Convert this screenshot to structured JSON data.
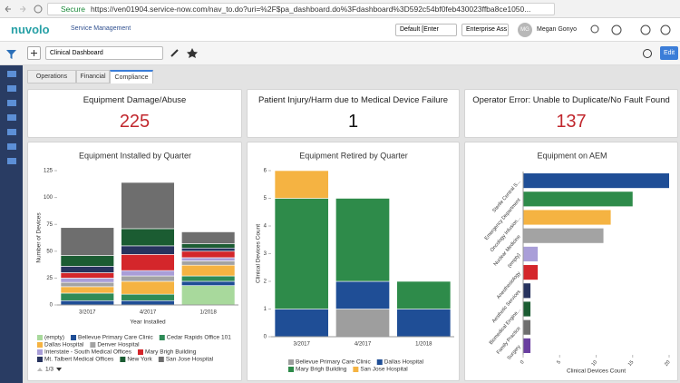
{
  "browser": {
    "secure_label": "Secure",
    "url": "https://ven01904.service-now.com/nav_to.do?uri=%2F$pa_dashboard.do%3Fdashboard%3D592c54bf0feb430023ffba8ce1050..."
  },
  "header": {
    "logo": "nuvolo",
    "app_title": "Service Management",
    "domain_select": "Default [Enter",
    "scope_select": "Enterprise Ass",
    "user_initials": "MG",
    "user_name": "Megan Gonyo"
  },
  "toolbar": {
    "dashboard_select": "Clinical Dashboard",
    "edit_button": "Edit"
  },
  "tabs": [
    "Operations",
    "Financial",
    "Compliance"
  ],
  "kpis": [
    {
      "title": "Equipment Damage/Abuse",
      "value": 225,
      "color": "#c1272d"
    },
    {
      "title": "Patient Injury/Harm due to Medical Device Failure",
      "value": 1,
      "color": "#111111"
    },
    {
      "title": "Operator Error: Unable to Duplicate/No Fault Found",
      "value": 137,
      "color": "#c1272d"
    }
  ],
  "chart_data": [
    {
      "type": "bar",
      "stacked": true,
      "title": "Equipment Installed by Quarter",
      "y_label": "Number of Devices",
      "x_label": "Year Installed",
      "categories": [
        "3/2017",
        "4/2017",
        "1/2018"
      ],
      "ylim": [
        0,
        125
      ],
      "yticks": [
        0,
        25,
        50,
        75,
        100,
        125
      ],
      "series": [
        {
          "name": "(empty)",
          "color": "#a8d99c",
          "values": [
            0,
            0,
            18
          ]
        },
        {
          "name": "Bellevue Primary Care Clinic",
          "color": "#1f4e96",
          "values": [
            4,
            4,
            4
          ]
        },
        {
          "name": "Cedar Rapids Office 101",
          "color": "#2e8b57",
          "values": [
            7,
            6,
            5
          ]
        },
        {
          "name": "Dallas Hospital",
          "color": "#f5b342",
          "values": [
            6,
            12,
            10
          ]
        },
        {
          "name": "Denver Hospital",
          "color": "#a3a3a3",
          "values": [
            4,
            5,
            4
          ]
        },
        {
          "name": "Interstate - South Medical Offices",
          "color": "#a99ed8",
          "values": [
            4,
            5,
            3
          ]
        },
        {
          "name": "Mary Brigh Building",
          "color": "#d4262b",
          "values": [
            5,
            15,
            6
          ]
        },
        {
          "name": "Mt. Talbert Medical Offices",
          "color": "#27335e",
          "values": [
            6,
            8,
            3
          ]
        },
        {
          "name": "New York",
          "color": "#1b5c32",
          "values": [
            10,
            16,
            4
          ]
        },
        {
          "name": "San Jose Hospital",
          "color": "#6e6e6e",
          "values": [
            26,
            43,
            11
          ]
        }
      ],
      "legend_page": "1/3"
    },
    {
      "type": "bar",
      "stacked": true,
      "title": "Equipment Retired by Quarter",
      "y_label": "Clinical Devices Count",
      "categories": [
        "3/2017",
        "4/2017",
        "1/2018"
      ],
      "ylim": [
        0,
        6
      ],
      "yticks": [
        0,
        1,
        2,
        3,
        4,
        5,
        6
      ],
      "series": [
        {
          "name": "Bellevue Primary Care Clinic",
          "color": "#9e9e9e",
          "values": [
            0,
            1,
            0
          ]
        },
        {
          "name": "Dallas Hospital",
          "color": "#1f4e96",
          "values": [
            1,
            1,
            1
          ]
        },
        {
          "name": "Mary Brigh Building",
          "color": "#2e8b4a",
          "values": [
            4,
            3,
            1
          ]
        },
        {
          "name": "San Jose Hospital",
          "color": "#f5b342",
          "values": [
            1,
            0,
            0
          ]
        }
      ]
    },
    {
      "type": "hbar",
      "title": "Equipment on AEM",
      "x_label": "Clinical Devices Count",
      "categories": [
        "Sterile Central S...",
        "Emergency Department",
        "Oncology Infusion...",
        "Nuclear Medicine",
        "(empty)",
        "Anesthesiology",
        "Aesthetic Services",
        "Biomedical Engine...",
        "Family Practice",
        "Surgery"
      ],
      "values": [
        20,
        15,
        12,
        11,
        2,
        2,
        1,
        1,
        1,
        1
      ],
      "colors": [
        "#1f4e96",
        "#2e8b4a",
        "#f5b342",
        "#a3a3a3",
        "#a99ed8",
        "#d4262b",
        "#27335e",
        "#1b5c32",
        "#6e6e6e",
        "#6a3fa0"
      ],
      "xlim": [
        0,
        20
      ],
      "xticks": [
        0,
        5,
        10,
        15,
        20
      ]
    }
  ]
}
